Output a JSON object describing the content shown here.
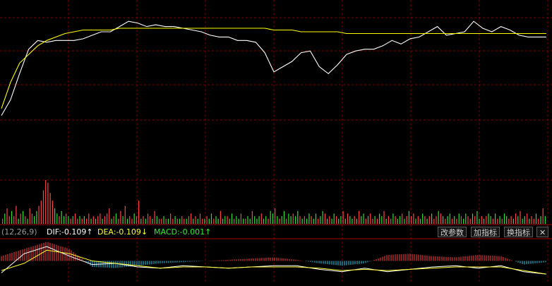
{
  "indicator": {
    "params": "(12,26,9)",
    "dif_label": "DIF:-0.109↑",
    "dea_label": "DEA:-0.109↓",
    "macd_label": "MACD:-0.001↑"
  },
  "toolbar": {
    "change_params": "改参数",
    "add_indicator": "加指标",
    "switch_indicator": "换指标",
    "close": "✕"
  },
  "colors": {
    "price_line": "#ffffff",
    "avg_line": "#ffff00",
    "up": "#ff4444",
    "down": "#33dd33",
    "macd_neg": "#33ccee",
    "grid": "#7a0000",
    "dea": "#ffff33"
  },
  "chart_data": [
    {
      "type": "line",
      "name": "intraday-price",
      "x": [
        0,
        4,
        8,
        12,
        16,
        20,
        24,
        28,
        32,
        36,
        40,
        44,
        48,
        52,
        56,
        60,
        64,
        68,
        72,
        76,
        80,
        84,
        88,
        92,
        96,
        100,
        104,
        108,
        112,
        116,
        120,
        124,
        128,
        132,
        136,
        140,
        144,
        148,
        152,
        156,
        160,
        164,
        168,
        172,
        176,
        180,
        184,
        188,
        192,
        196,
        200,
        204,
        208,
        212,
        216,
        220,
        224,
        228,
        232,
        236,
        240
      ],
      "series": [
        {
          "values": [
            -1.5,
            -0.6,
            0.9,
            2.3,
            2.8,
            2.7,
            2.8,
            2.8,
            2.8,
            2.9,
            3.1,
            3.3,
            3.3,
            3.6,
            3.9,
            3.8,
            3.6,
            3.7,
            3.6,
            3.6,
            3.5,
            3.4,
            3.3,
            3.1,
            3.0,
            3.0,
            2.8,
            2.8,
            2.7,
            2.1,
            1.0,
            1.3,
            1.6,
            2.1,
            2.2,
            1.3,
            0.9,
            1.4,
            2.0,
            2.2,
            2.3,
            2.3,
            2.5,
            2.8,
            2.6,
            2.9,
            3.0,
            3.3,
            3.6,
            3.1,
            3.2,
            3.3,
            3.9,
            3.5,
            3.3,
            3.6,
            3.4,
            3.1,
            3.0,
            3.0,
            3.0
          ]
        },
        {
          "values": [
            -1.1,
            0.4,
            1.5,
            2.0,
            2.5,
            2.8,
            3.0,
            3.2,
            3.3,
            3.4,
            3.4,
            3.4,
            3.4,
            3.5,
            3.5,
            3.5,
            3.5,
            3.5,
            3.5,
            3.5,
            3.5,
            3.5,
            3.5,
            3.5,
            3.5,
            3.5,
            3.5,
            3.5,
            3.5,
            3.5,
            3.4,
            3.4,
            3.4,
            3.3,
            3.3,
            3.3,
            3.3,
            3.3,
            3.2,
            3.2,
            3.2,
            3.2,
            3.2,
            3.2,
            3.2,
            3.2,
            3.2,
            3.2,
            3.2,
            3.2,
            3.2,
            3.2,
            3.2,
            3.2,
            3.2,
            3.2,
            3.2,
            3.2,
            3.2,
            3.2,
            3.2
          ]
        }
      ],
      "ylim": [
        -5,
        5
      ],
      "grid": true
    },
    {
      "type": "bar",
      "name": "volume",
      "values": [
        2,
        4,
        6,
        3,
        5,
        3,
        7,
        2,
        4,
        5,
        3,
        2,
        6,
        4,
        3,
        5,
        7,
        9,
        13,
        17,
        16,
        12,
        9,
        6,
        4,
        3,
        5,
        3,
        4,
        3,
        2,
        3,
        4,
        2,
        3,
        2,
        3,
        2,
        4,
        2,
        3,
        2,
        3,
        4,
        2,
        3,
        4,
        6,
        2,
        3,
        4,
        2,
        5,
        3,
        7,
        2,
        3,
        2,
        4,
        3,
        9,
        2,
        3,
        2,
        4,
        3,
        2,
        5,
        3,
        2,
        2,
        3,
        2,
        2,
        4,
        2,
        3,
        2,
        2,
        3,
        2,
        2,
        3,
        4,
        2,
        3,
        2,
        4,
        2,
        2,
        3,
        2,
        4,
        2,
        3,
        2,
        5,
        2,
        3,
        3,
        2,
        4,
        2,
        3,
        2,
        4,
        2,
        2,
        3,
        2,
        5,
        3,
        2,
        3,
        4,
        2,
        3,
        2,
        5,
        4,
        6,
        3,
        2,
        3,
        5,
        2,
        4,
        3,
        4,
        3,
        5,
        3,
        2,
        3,
        2,
        4,
        3,
        2,
        4,
        2,
        3,
        5,
        4,
        2,
        3,
        2,
        4,
        3,
        2,
        3,
        5,
        2,
        4,
        3,
        2,
        3,
        2,
        5,
        3,
        4,
        2,
        3,
        4,
        2,
        3,
        2,
        4,
        3,
        5,
        2,
        3,
        2,
        4,
        3,
        2,
        3,
        4,
        2,
        3,
        5,
        3,
        4,
        2,
        3,
        2,
        4,
        3,
        2,
        3,
        4,
        2,
        3,
        5,
        4,
        3,
        2,
        3,
        4,
        2,
        3,
        2,
        4,
        3,
        2,
        4,
        3,
        2,
        4,
        3,
        5,
        2,
        3,
        2,
        3,
        4,
        3,
        2,
        4,
        2,
        3,
        2,
        4,
        3,
        2,
        3,
        2,
        4,
        3,
        5,
        2,
        3,
        4,
        2,
        3,
        2,
        4,
        2,
        3,
        6,
        3
      ],
      "up_down": [
        1,
        0,
        1,
        1,
        0,
        1,
        1,
        0,
        1,
        0,
        1,
        0,
        1,
        1,
        0,
        0,
        1,
        1,
        1,
        1,
        1,
        1,
        1,
        0,
        0,
        1,
        0,
        0,
        1,
        0,
        1,
        0,
        1,
        1,
        0,
        1,
        0,
        1,
        1,
        0,
        1,
        0,
        1,
        1,
        0,
        1,
        1,
        1,
        0,
        1,
        0,
        1,
        1,
        0,
        1,
        0,
        1,
        1,
        0,
        1,
        1,
        0,
        1,
        0,
        1,
        1,
        0,
        1,
        0,
        1,
        1,
        0,
        1,
        0,
        1,
        1,
        0,
        1,
        0,
        1,
        1,
        0,
        1,
        1,
        0,
        1,
        0,
        1,
        1,
        0,
        1,
        0,
        0,
        1,
        0,
        0,
        1,
        0,
        0,
        1,
        0,
        0,
        1,
        0,
        0,
        1,
        0,
        1,
        0,
        0,
        1,
        0,
        0,
        0,
        1,
        0,
        0,
        1,
        0,
        0,
        1,
        0,
        1,
        0,
        0,
        1,
        0,
        0,
        1,
        0,
        0,
        1,
        0,
        1,
        0,
        0,
        1,
        0,
        0,
        1,
        0,
        0,
        1,
        0,
        1,
        0,
        0,
        1,
        0,
        0,
        1,
        0,
        1,
        0,
        0,
        1,
        0,
        1,
        0,
        0,
        1,
        0,
        1,
        1,
        0,
        1,
        0,
        0,
        1,
        0,
        1,
        1,
        0,
        1,
        0,
        0,
        1,
        0,
        1,
        0,
        1,
        1,
        0,
        1,
        0,
        0,
        1,
        0,
        1,
        0,
        1,
        1,
        0,
        1,
        0,
        1,
        0,
        0,
        1,
        0,
        1,
        0,
        1,
        0,
        0,
        1,
        1,
        0,
        1,
        0,
        0,
        1,
        0,
        1,
        0,
        0,
        1,
        0,
        1,
        0,
        1,
        0,
        0,
        1,
        1,
        0,
        1,
        0,
        1,
        0,
        0,
        1,
        0,
        1,
        1,
        0,
        1,
        0,
        1,
        0,
        0,
        1,
        0,
        1,
        0,
        0,
        1,
        0,
        1,
        1,
        0,
        1,
        0,
        0,
        1
      ]
    },
    {
      "type": "bar",
      "name": "MACD",
      "x": [
        0,
        10,
        20,
        30,
        40,
        50,
        60,
        70,
        80,
        90,
        100,
        110,
        120,
        130,
        140,
        150,
        160,
        170,
        180,
        190,
        200,
        210,
        220,
        230,
        240
      ],
      "series": [
        {
          "name": "DIF",
          "values": [
            -0.1,
            0.06,
            0.12,
            0.04,
            -0.03,
            -0.02,
            -0.05,
            -0.06,
            -0.04,
            -0.05,
            -0.06,
            -0.05,
            -0.04,
            -0.04,
            -0.07,
            -0.09,
            -0.06,
            -0.09,
            -0.07,
            -0.05,
            -0.04,
            -0.06,
            -0.04,
            -0.09,
            -0.11
          ]
        },
        {
          "name": "DEA",
          "values": [
            -0.08,
            -0.02,
            0.09,
            0.06,
            0.0,
            -0.02,
            -0.04,
            -0.06,
            -0.05,
            -0.05,
            -0.06,
            -0.05,
            -0.05,
            -0.05,
            -0.06,
            -0.08,
            -0.07,
            -0.08,
            -0.07,
            -0.06,
            -0.05,
            -0.05,
            -0.05,
            -0.08,
            -0.11
          ]
        }
      ],
      "hist": [
        0.04,
        0.1,
        0.16,
        0.1,
        -0.05,
        -0.06,
        -0.04,
        -0.02,
        -0.01,
        0.0,
        0.01,
        0.02,
        0.03,
        0.01,
        -0.02,
        -0.04,
        -0.02,
        0.05,
        0.06,
        0.04,
        0.03,
        0.05,
        0.04,
        -0.03,
        -0.01
      ],
      "ylim": [
        -0.18,
        0.18
      ]
    }
  ]
}
